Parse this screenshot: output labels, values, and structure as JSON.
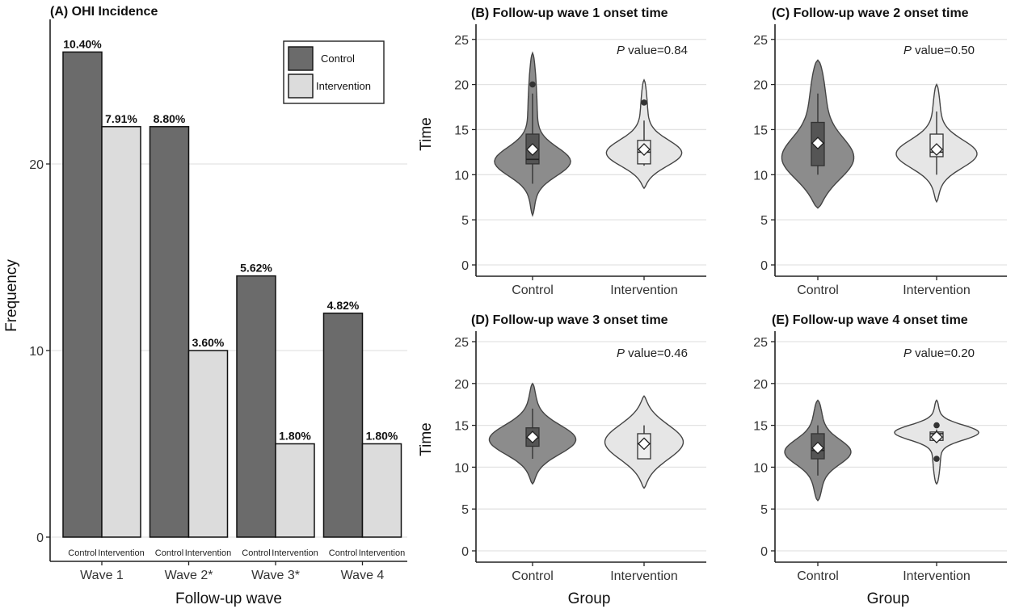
{
  "colors": {
    "control": "#6b6b6b",
    "intervention": "#dcdcdc",
    "grid": "#e3e3e3",
    "axis": "#222222",
    "box_control": "#555555",
    "box_intervention": "#eeeeee"
  },
  "chart_data": [
    {
      "id": "A",
      "type": "bar",
      "title": "(A) OHI Incidence",
      "xlabel": "Follow-up wave",
      "ylabel": "Frequency",
      "ylim": [
        0,
        27
      ],
      "yticks": [
        "0",
        "10",
        "20"
      ],
      "grid": true,
      "legend": {
        "position": "top-right",
        "entries": [
          "Control",
          "Intervention"
        ]
      },
      "categories": [
        "Wave 1",
        "Wave 2*",
        "Wave 3*",
        "Wave 4"
      ],
      "group_labels": [
        "Control",
        "Intervention"
      ],
      "series": [
        {
          "name": "Control",
          "values": [
            26,
            22,
            14,
            12
          ],
          "labels": [
            "10.40%",
            "8.80%",
            "5.62%",
            "4.82%"
          ]
        },
        {
          "name": "Intervention",
          "values": [
            22,
            10,
            5,
            5
          ],
          "labels": [
            "7.91%",
            "3.60%",
            "1.80%",
            "1.80%"
          ]
        }
      ]
    },
    {
      "id": "B",
      "type": "violin",
      "title": "(B) Follow-up wave 1 onset time",
      "xlabel": "",
      "ylabel": "Time",
      "ylim": [
        0,
        25
      ],
      "yticks": [
        "0",
        "5",
        "10",
        "15",
        "20",
        "25"
      ],
      "grid": true,
      "p_prefix": "P",
      "p_text": " value=0.84",
      "categories": [
        "Control",
        "Intervention"
      ],
      "groups": [
        {
          "name": "Control",
          "range": [
            5.5,
            23.5
          ],
          "peak": 11.3,
          "sd": 1.6,
          "tail": 0.12,
          "width": 0.9,
          "q1": 11.2,
          "median": 11.7,
          "q3": 14.5,
          "wlo": 9,
          "whi": 19,
          "mean": 12.8,
          "outliers": [
            20
          ]
        },
        {
          "name": "Intervention",
          "range": [
            8.5,
            20.5
          ],
          "peak": 12.2,
          "sd": 1.5,
          "tail": 0.1,
          "width": 0.9,
          "q1": 11.2,
          "median": 12.5,
          "q3": 13.8,
          "wlo": 11,
          "whi": 16,
          "mean": 12.8,
          "outliers": [
            18
          ]
        }
      ]
    },
    {
      "id": "C",
      "type": "violin",
      "title": "(C) Follow-up wave 2 onset time",
      "xlabel": "",
      "ylabel": "",
      "ylim": [
        0,
        25
      ],
      "yticks": [
        "0",
        "5",
        "10",
        "15",
        "20",
        "25"
      ],
      "grid": true,
      "p_prefix": "P",
      "p_text": " value=0.50",
      "categories": [
        "Control",
        "Intervention"
      ],
      "groups": [
        {
          "name": "Control",
          "range": [
            6.3,
            22.7
          ],
          "peak": 11.5,
          "sd": 2.3,
          "tail": 0.25,
          "width": 0.85,
          "q1": 11,
          "median": 13.5,
          "q3": 15.8,
          "wlo": 10,
          "whi": 19,
          "mean": 13.5,
          "outliers": []
        },
        {
          "name": "Intervention",
          "range": [
            7,
            20
          ],
          "peak": 12.2,
          "sd": 1.6,
          "tail": 0.12,
          "width": 0.9,
          "q1": 12,
          "median": 12.5,
          "q3": 14.5,
          "wlo": 10,
          "whi": 17,
          "mean": 12.8,
          "outliers": []
        }
      ]
    },
    {
      "id": "D",
      "type": "violin",
      "title": "(D) Follow-up wave 3 onset time",
      "xlabel": "Group",
      "ylabel": "Time",
      "ylim": [
        0,
        25
      ],
      "yticks": [
        "0",
        "5",
        "10",
        "15",
        "20",
        "25"
      ],
      "grid": true,
      "p_prefix": "P",
      "p_text": " value=0.46",
      "categories": [
        "Control",
        "Intervention"
      ],
      "groups": [
        {
          "name": "Control",
          "range": [
            8,
            20
          ],
          "peak": 13.2,
          "sd": 1.8,
          "tail": 0.12,
          "width": 0.95,
          "q1": 12.5,
          "median": 13.5,
          "q3": 14.7,
          "wlo": 11,
          "whi": 17,
          "mean": 13.6,
          "outliers": []
        },
        {
          "name": "Intervention",
          "range": [
            7.5,
            18.5
          ],
          "peak": 13,
          "sd": 2.2,
          "tail": 0.1,
          "width": 0.85,
          "q1": 11,
          "median": 12.8,
          "q3": 14,
          "wlo": 11,
          "whi": 15,
          "mean": 12.8,
          "outliers": []
        }
      ]
    },
    {
      "id": "E",
      "type": "violin",
      "title": "(E) Follow-up wave 4 onset time",
      "xlabel": "Group",
      "ylabel": "",
      "ylim": [
        0,
        25
      ],
      "yticks": [
        "0",
        "5",
        "10",
        "15",
        "20",
        "25"
      ],
      "grid": true,
      "p_prefix": "P",
      "p_text": " value=0.20",
      "categories": [
        "Control",
        "Intervention"
      ],
      "groups": [
        {
          "name": "Control",
          "range": [
            6,
            18
          ],
          "peak": 11.8,
          "sd": 1.5,
          "tail": 0.2,
          "width": 0.72,
          "q1": 11,
          "median": 12,
          "q3": 14,
          "wlo": 9,
          "whi": 15,
          "mean": 12.3,
          "outliers": []
        },
        {
          "name": "Intervention",
          "range": [
            8,
            18
          ],
          "peak": 14.2,
          "sd": 0.9,
          "tail": 0.1,
          "width": 0.95,
          "q1": 13.2,
          "median": 14,
          "q3": 14.2,
          "wlo": 13,
          "whi": 14.5,
          "mean": 13.6,
          "outliers": [
            15,
            11
          ]
        }
      ]
    }
  ]
}
